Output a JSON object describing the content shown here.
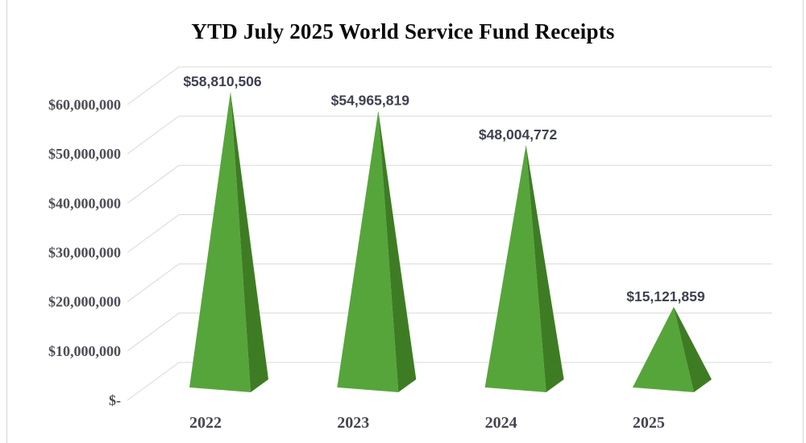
{
  "title": "YTD July 2025 World Service Fund Receipts",
  "chart_data": {
    "type": "bar",
    "subtype": "pyramid-3d",
    "title": "YTD July 2025 World Service Fund Receipts",
    "categories": [
      "2022",
      "2023",
      "2024",
      "2025"
    ],
    "values": [
      58810506,
      54965819,
      48004772,
      15121859
    ],
    "data_labels": [
      "$58,810,506",
      "$54,965,819",
      "$48,004,772",
      "$15,121,859"
    ],
    "xlabel": "",
    "ylabel": "",
    "ylim": [
      0,
      60000000
    ],
    "ytick_interval": 10000000,
    "ytick_labels": [
      "$-",
      "$10,000,000",
      "$20,000,000",
      "$30,000,000",
      "$40,000,000",
      "$50,000,000",
      "$60,000,000"
    ],
    "grid": true,
    "legend": false,
    "colors": {
      "pyramid_front": "#56a53b",
      "pyramid_side": "#3e7c24",
      "gridline": "#d9d9d9",
      "data_label": "#3f4150",
      "tick_label": "#4e4e58",
      "category_label": "#454550",
      "title": "#0a0a0a",
      "background": "#ffffff"
    }
  }
}
